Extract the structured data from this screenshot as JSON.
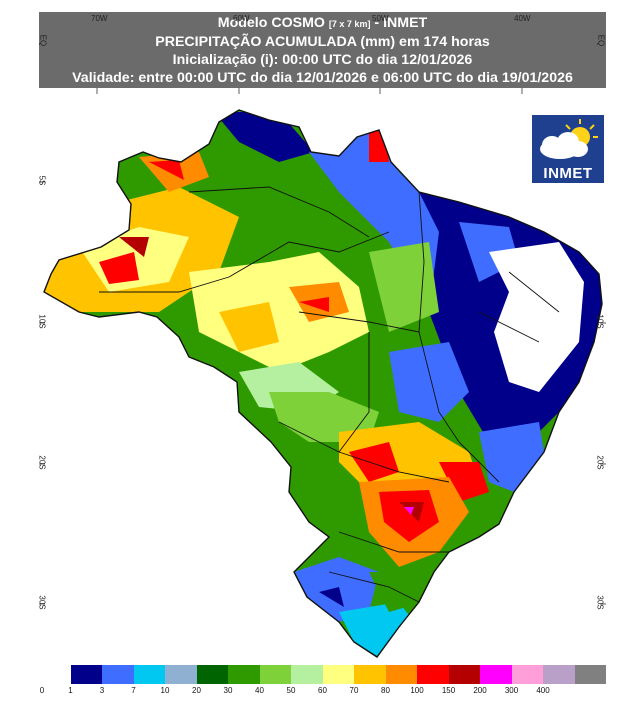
{
  "header": {
    "line1_pre": "Modelo COSMO",
    "line1_small": "[7 x 7 km]",
    "line1_post": "- INMET",
    "line2": "PRECIPITAÇÃO ACUMULADA (mm) em 174 horas",
    "line3": "Inicialização (i): 00:00 UTC do dia 12/01/2026",
    "line4": "Validade: entre 00:00 UTC do dia 12/01/2026 e 06:00 UTC do dia 19/01/2026"
  },
  "logo": {
    "label": "INMET",
    "icon": "cloud-sun-icon"
  },
  "axes": {
    "top": [
      "70W",
      "60W",
      "50W",
      "40W"
    ],
    "left": [
      "EQ",
      "5S",
      "10S",
      "20S",
      "30S"
    ],
    "right": [
      "EQ",
      "10S",
      "20S",
      "30S"
    ]
  },
  "legend": {
    "labels": [
      "0",
      "1",
      "3",
      "7",
      "10",
      "20",
      "30",
      "40",
      "50",
      "60",
      "70",
      "80",
      "100",
      "150",
      "200",
      "300",
      "400"
    ],
    "colors": [
      "#ffffff",
      "#00008b",
      "#3f6dff",
      "#00c8f0",
      "#8fb0d0",
      "#006400",
      "#2e9a00",
      "#7fd13a",
      "#b4f0a0",
      "#ffff80",
      "#ffc300",
      "#ff8c00",
      "#ff0000",
      "#b40000",
      "#ff00ff",
      "#ff9fd9",
      "#b9a0c8",
      "#808080"
    ]
  }
}
